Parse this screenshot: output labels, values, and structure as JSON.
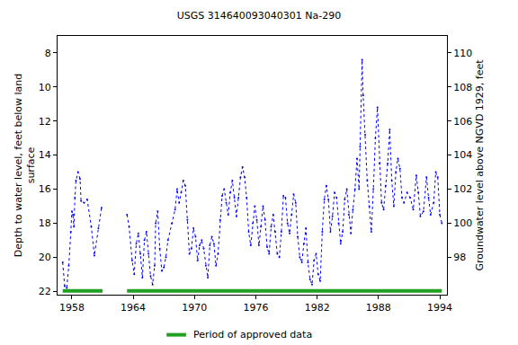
{
  "chart_data": {
    "type": "line",
    "title": "USGS 314640093040301 Na-290",
    "x_label": null,
    "y_label": "Depth to water level, feet below land\nsurface",
    "y2_label": "Groundwater level above NGVD 1929, feet",
    "xlim": [
      1956.6,
      1994.7
    ],
    "xticks": [
      1958,
      1964,
      1970,
      1976,
      1982,
      1988,
      1994
    ],
    "ylim": [
      22.2,
      7
    ],
    "yticks": [
      8,
      10,
      12,
      14,
      16,
      18,
      20,
      22
    ],
    "y2lim": [
      95.8,
      111
    ],
    "y2ticks": [
      98,
      100,
      102,
      104,
      106,
      108,
      110
    ],
    "grid": false,
    "series": [
      {
        "name": "Depth to water level",
        "color": "#0000ff",
        "marker": "circle",
        "line_style": "dot",
        "x": [
          1957.1,
          1957.3,
          1957.5,
          1957.7,
          1957.9,
          1958.0,
          1958.1,
          1958.2,
          1958.3,
          1958.4,
          1958.6,
          1958.8,
          1958.9,
          1959.2,
          1959.5,
          1959.9,
          1960.2,
          1960.6,
          1960.9,
          1962.0,
          1963.4,
          1963.6,
          1963.9,
          1964.1,
          1964.3,
          1964.5,
          1964.7,
          1964.9,
          1965.1,
          1965.3,
          1965.5,
          1965.7,
          1965.9,
          1966.1,
          1966.2,
          1966.4,
          1966.6,
          1966.8,
          1967.0,
          1967.2,
          1967.4,
          1967.8,
          1968.1,
          1968.3,
          1968.5,
          1968.7,
          1968.9,
          1969.1,
          1969.3,
          1969.5,
          1969.7,
          1969.9,
          1970.1,
          1970.3,
          1970.5,
          1970.7,
          1970.9,
          1971.1,
          1971.3,
          1971.5,
          1971.7,
          1971.9,
          1972.1,
          1972.3,
          1972.5,
          1972.7,
          1972.9,
          1973.1,
          1973.3,
          1973.5,
          1973.7,
          1973.9,
          1974.1,
          1974.3,
          1974.5,
          1974.7,
          1974.9,
          1975.1,
          1975.3,
          1975.5,
          1975.7,
          1975.9,
          1976.1,
          1976.3,
          1976.5,
          1976.7,
          1976.9,
          1977.1,
          1977.3,
          1977.5,
          1977.7,
          1977.9,
          1978.1,
          1978.3,
          1978.5,
          1978.7,
          1978.9,
          1979.1,
          1979.3,
          1979.5,
          1979.7,
          1979.9,
          1980.1,
          1980.3,
          1980.5,
          1980.7,
          1980.9,
          1981.1,
          1981.3,
          1981.5,
          1981.7,
          1981.9,
          1982.1,
          1982.3,
          1982.5,
          1982.7,
          1982.9,
          1983.1,
          1983.3,
          1983.5,
          1983.7,
          1983.9,
          1984.1,
          1984.3,
          1984.5,
          1984.7,
          1984.9,
          1985.1,
          1985.3,
          1985.5,
          1985.7,
          1985.9,
          1986.1,
          1986.2,
          1986.4,
          1986.5,
          1986.7,
          1986.9,
          1987.1,
          1987.3,
          1987.5,
          1987.7,
          1987.9,
          1988.1,
          1988.3,
          1988.5,
          1988.7,
          1988.9,
          1989.1,
          1989.3,
          1989.5,
          1989.7,
          1989.9,
          1990.1,
          1990.3,
          1990.5,
          1990.8,
          1991.1,
          1991.4,
          1991.7,
          1991.9,
          1992.1,
          1992.4,
          1992.7,
          1992.9,
          1993.1,
          1993.4,
          1993.6,
          1993.8,
          1994.0,
          1994.2
        ],
        "values": [
          20.3,
          21.7,
          21.8,
          20.5,
          18.5,
          17.3,
          17.5,
          18.2,
          16.5,
          15.5,
          15.0,
          15.4,
          16.7,
          16.8,
          16.6,
          18.2,
          19.9,
          18.3,
          17.1,
          null,
          17.5,
          18.2,
          20.2,
          21.0,
          19.2,
          18.6,
          19.8,
          21.2,
          19.0,
          18.5,
          19.8,
          21.1,
          21.6,
          20.5,
          18.0,
          17.3,
          19.5,
          20.8,
          20.6,
          20.0,
          19.0,
          18.0,
          17.2,
          16.0,
          16.8,
          16.2,
          15.5,
          15.8,
          17.8,
          19.8,
          19.5,
          18.3,
          18.8,
          20.2,
          19.3,
          19.0,
          19.5,
          20.5,
          21.2,
          19.3,
          18.8,
          19.2,
          20.5,
          19.8,
          17.8,
          16.4,
          16.0,
          16.8,
          17.5,
          16.2,
          15.5,
          16.5,
          17.6,
          16.5,
          15.3,
          14.7,
          15.3,
          16.5,
          18.5,
          19.3,
          18.0,
          17.0,
          17.8,
          19.3,
          18.2,
          17.0,
          17.8,
          19.4,
          19.8,
          18.2,
          17.5,
          18.5,
          19.8,
          20.0,
          18.5,
          16.4,
          16.5,
          18.0,
          18.6,
          17.5,
          16.3,
          16.8,
          18.8,
          20.0,
          20.3,
          19.2,
          18.3,
          20.3,
          21.3,
          21.6,
          20.2,
          19.8,
          21.0,
          21.4,
          18.5,
          16.6,
          15.8,
          16.6,
          18.5,
          17.6,
          16.2,
          16.5,
          18.0,
          19.2,
          18.5,
          16.6,
          16.0,
          17.5,
          18.6,
          17.2,
          16.0,
          14.2,
          16.0,
          13.5,
          8.4,
          10.5,
          12.8,
          15.5,
          17.0,
          18.5,
          16.0,
          13.0,
          11.2,
          14.5,
          16.8,
          17.2,
          15.8,
          14.5,
          12.5,
          15.5,
          17.0,
          15.0,
          14.2,
          14.8,
          16.5,
          16.8,
          16.2,
          16.5,
          17.2,
          15.2,
          16.2,
          17.6,
          17.3,
          15.3,
          16.5,
          17.5,
          16.8,
          15.0,
          15.3,
          17.5,
          18.0
        ]
      }
    ],
    "approved_periods": {
      "name": "Period of approved data",
      "color": "#22a022",
      "ranges": [
        [
          1957.1,
          1961.0
        ],
        [
          1963.4,
          1994.2
        ]
      ]
    }
  }
}
